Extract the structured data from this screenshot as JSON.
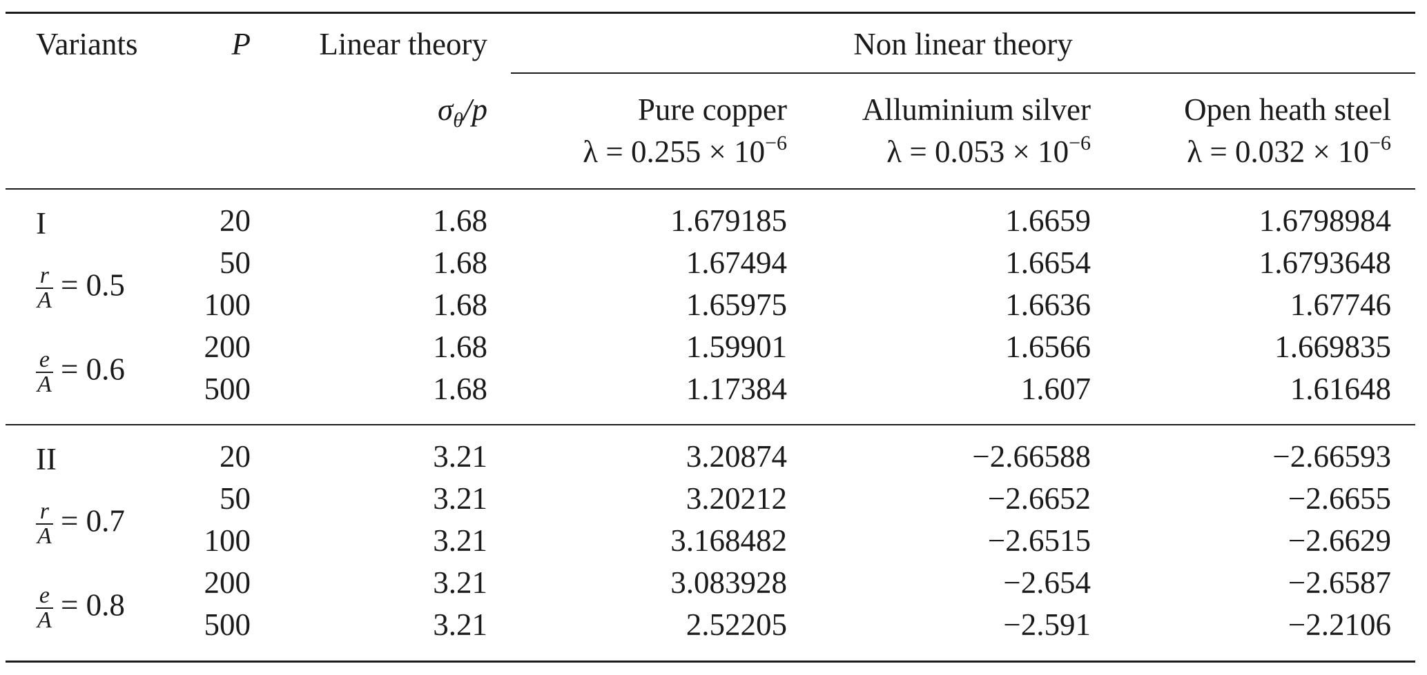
{
  "header": {
    "variants": "Variants",
    "p": "P",
    "linear": "Linear theory",
    "nonlinear": "Non linear theory",
    "sigma_symbol": "σ",
    "sigma_sub": "θ",
    "sigma_rest": "/p",
    "materials": [
      {
        "name": "Pure copper",
        "lambda_value": "λ = 0.255 × 10",
        "exponent": "−6"
      },
      {
        "name": "Alluminium silver",
        "lambda_value": "λ = 0.053 × 10",
        "exponent": "−6"
      },
      {
        "name": "Open heath steel",
        "lambda_value": "λ = 0.032 × 10",
        "exponent": "−6"
      }
    ]
  },
  "groups": [
    {
      "label": "I",
      "ratio1": {
        "num": "r",
        "den": "A",
        "value": "= 0.5"
      },
      "ratio2": {
        "num": "e",
        "den": "A",
        "value": "= 0.6"
      },
      "rows": [
        {
          "p": "20",
          "linear": "1.68",
          "copper": "1.679185",
          "silver": "1.6659",
          "steel": "1.6798984"
        },
        {
          "p": "50",
          "linear": "1.68",
          "copper": "1.67494",
          "silver": "1.6654",
          "steel": "1.6793648"
        },
        {
          "p": "100",
          "linear": "1.68",
          "copper": "1.65975",
          "silver": "1.6636",
          "steel": "1.67746"
        },
        {
          "p": "200",
          "linear": "1.68",
          "copper": "1.59901",
          "silver": "1.6566",
          "steel": "1.669835"
        },
        {
          "p": "500",
          "linear": "1.68",
          "copper": "1.17384",
          "silver": "1.607",
          "steel": "1.61648"
        }
      ]
    },
    {
      "label": "II",
      "ratio1": {
        "num": "r",
        "den": "A",
        "value": "= 0.7"
      },
      "ratio2": {
        "num": "e",
        "den": "A",
        "value": "= 0.8"
      },
      "rows": [
        {
          "p": "20",
          "linear": "3.21",
          "copper": "3.20874",
          "silver": "−2.66588",
          "steel": "−2.66593"
        },
        {
          "p": "50",
          "linear": "3.21",
          "copper": "3.20212",
          "silver": "−2.6652",
          "steel": "−2.6655"
        },
        {
          "p": "100",
          "linear": "3.21",
          "copper": "3.168482",
          "silver": "−2.6515",
          "steel": "−2.6629"
        },
        {
          "p": "200",
          "linear": "3.21",
          "copper": "3.083928",
          "silver": "−2.654",
          "steel": "−2.6587"
        },
        {
          "p": "500",
          "linear": "3.21",
          "copper": "2.52205",
          "silver": "−2.591",
          "steel": "−2.2106"
        }
      ]
    }
  ]
}
